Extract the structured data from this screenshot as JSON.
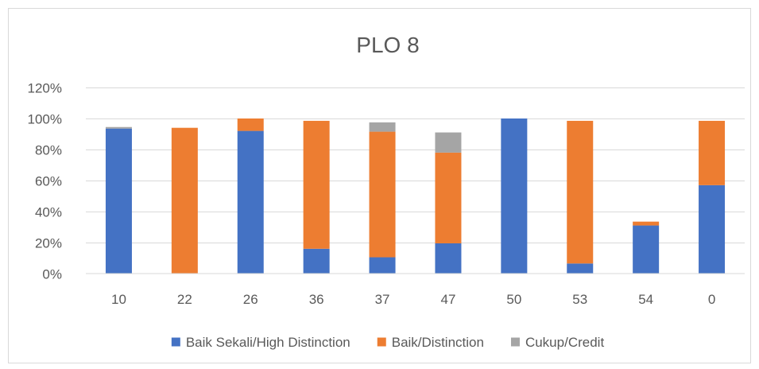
{
  "chart_data": {
    "type": "bar",
    "stacked": true,
    "title": "PLO 8",
    "xlabel": "",
    "ylabel": "",
    "categories": [
      "10",
      "22",
      "26",
      "36",
      "37",
      "47",
      "50",
      "53",
      "54",
      "0"
    ],
    "series": [
      {
        "name": "Baik Sekali/High Distinction",
        "color": "#4472C4",
        "values": [
          93.5,
          0,
          92,
          16,
          10.5,
          19.5,
          100,
          6.5,
          31,
          57
        ]
      },
      {
        "name": "Baik/Distinction",
        "color": "#ED7D31",
        "values": [
          0,
          94,
          8,
          82.5,
          81,
          58.5,
          0,
          92,
          2.5,
          41.5
        ]
      },
      {
        "name": "Cukup/Credit",
        "color": "#A5A5A5",
        "values": [
          1,
          0,
          0,
          0,
          6,
          13,
          0,
          0,
          0,
          0
        ]
      }
    ],
    "ylim": [
      0,
      120
    ],
    "yticks": [
      0,
      20,
      40,
      60,
      80,
      100,
      120
    ],
    "ytick_labels": [
      "0%",
      "20%",
      "40%",
      "60%",
      "80%",
      "100%",
      "120%"
    ],
    "grid": true,
    "legend_position": "bottom"
  }
}
